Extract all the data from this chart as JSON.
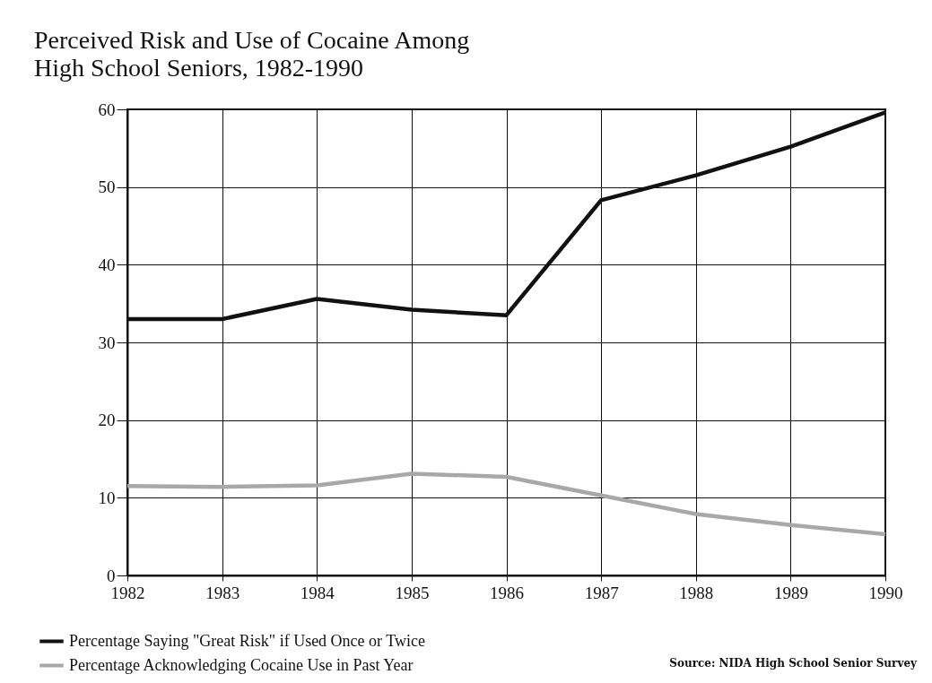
{
  "chart_data": {
    "type": "line",
    "title": "Perceived Risk and Use of Cocaine Among High School Seniors, 1982-1990",
    "x": [
      1982,
      1983,
      1984,
      1985,
      1986,
      1987,
      1988,
      1989,
      1990
    ],
    "series": [
      {
        "name": "Percentage Saying \"Great Risk\" if Used Once or Twice",
        "color": "#111111",
        "values": [
          33,
          33,
          35.6,
          34.2,
          33.5,
          48.3,
          51.5,
          55.2,
          59.6
        ]
      },
      {
        "name": "Percentage Acknowledging Cocaine Use in Past Year",
        "color": "#a8a8a8",
        "values": [
          11.5,
          11.4,
          11.6,
          13.1,
          12.7,
          10.3,
          7.9,
          6.5,
          5.3
        ]
      }
    ],
    "xlim": [
      1982,
      1990
    ],
    "xticks": [
      1982,
      1983,
      1984,
      1985,
      1986,
      1987,
      1988,
      1989,
      1990
    ],
    "ylim": [
      0,
      60
    ],
    "yticks": [
      0,
      10,
      20,
      30,
      40,
      50,
      60
    ],
    "grid": true,
    "legend": "bottom left",
    "marker": "none",
    "line_style": "solid",
    "annotations": [
      "Source: NIDA High School Senior Survey"
    ]
  }
}
